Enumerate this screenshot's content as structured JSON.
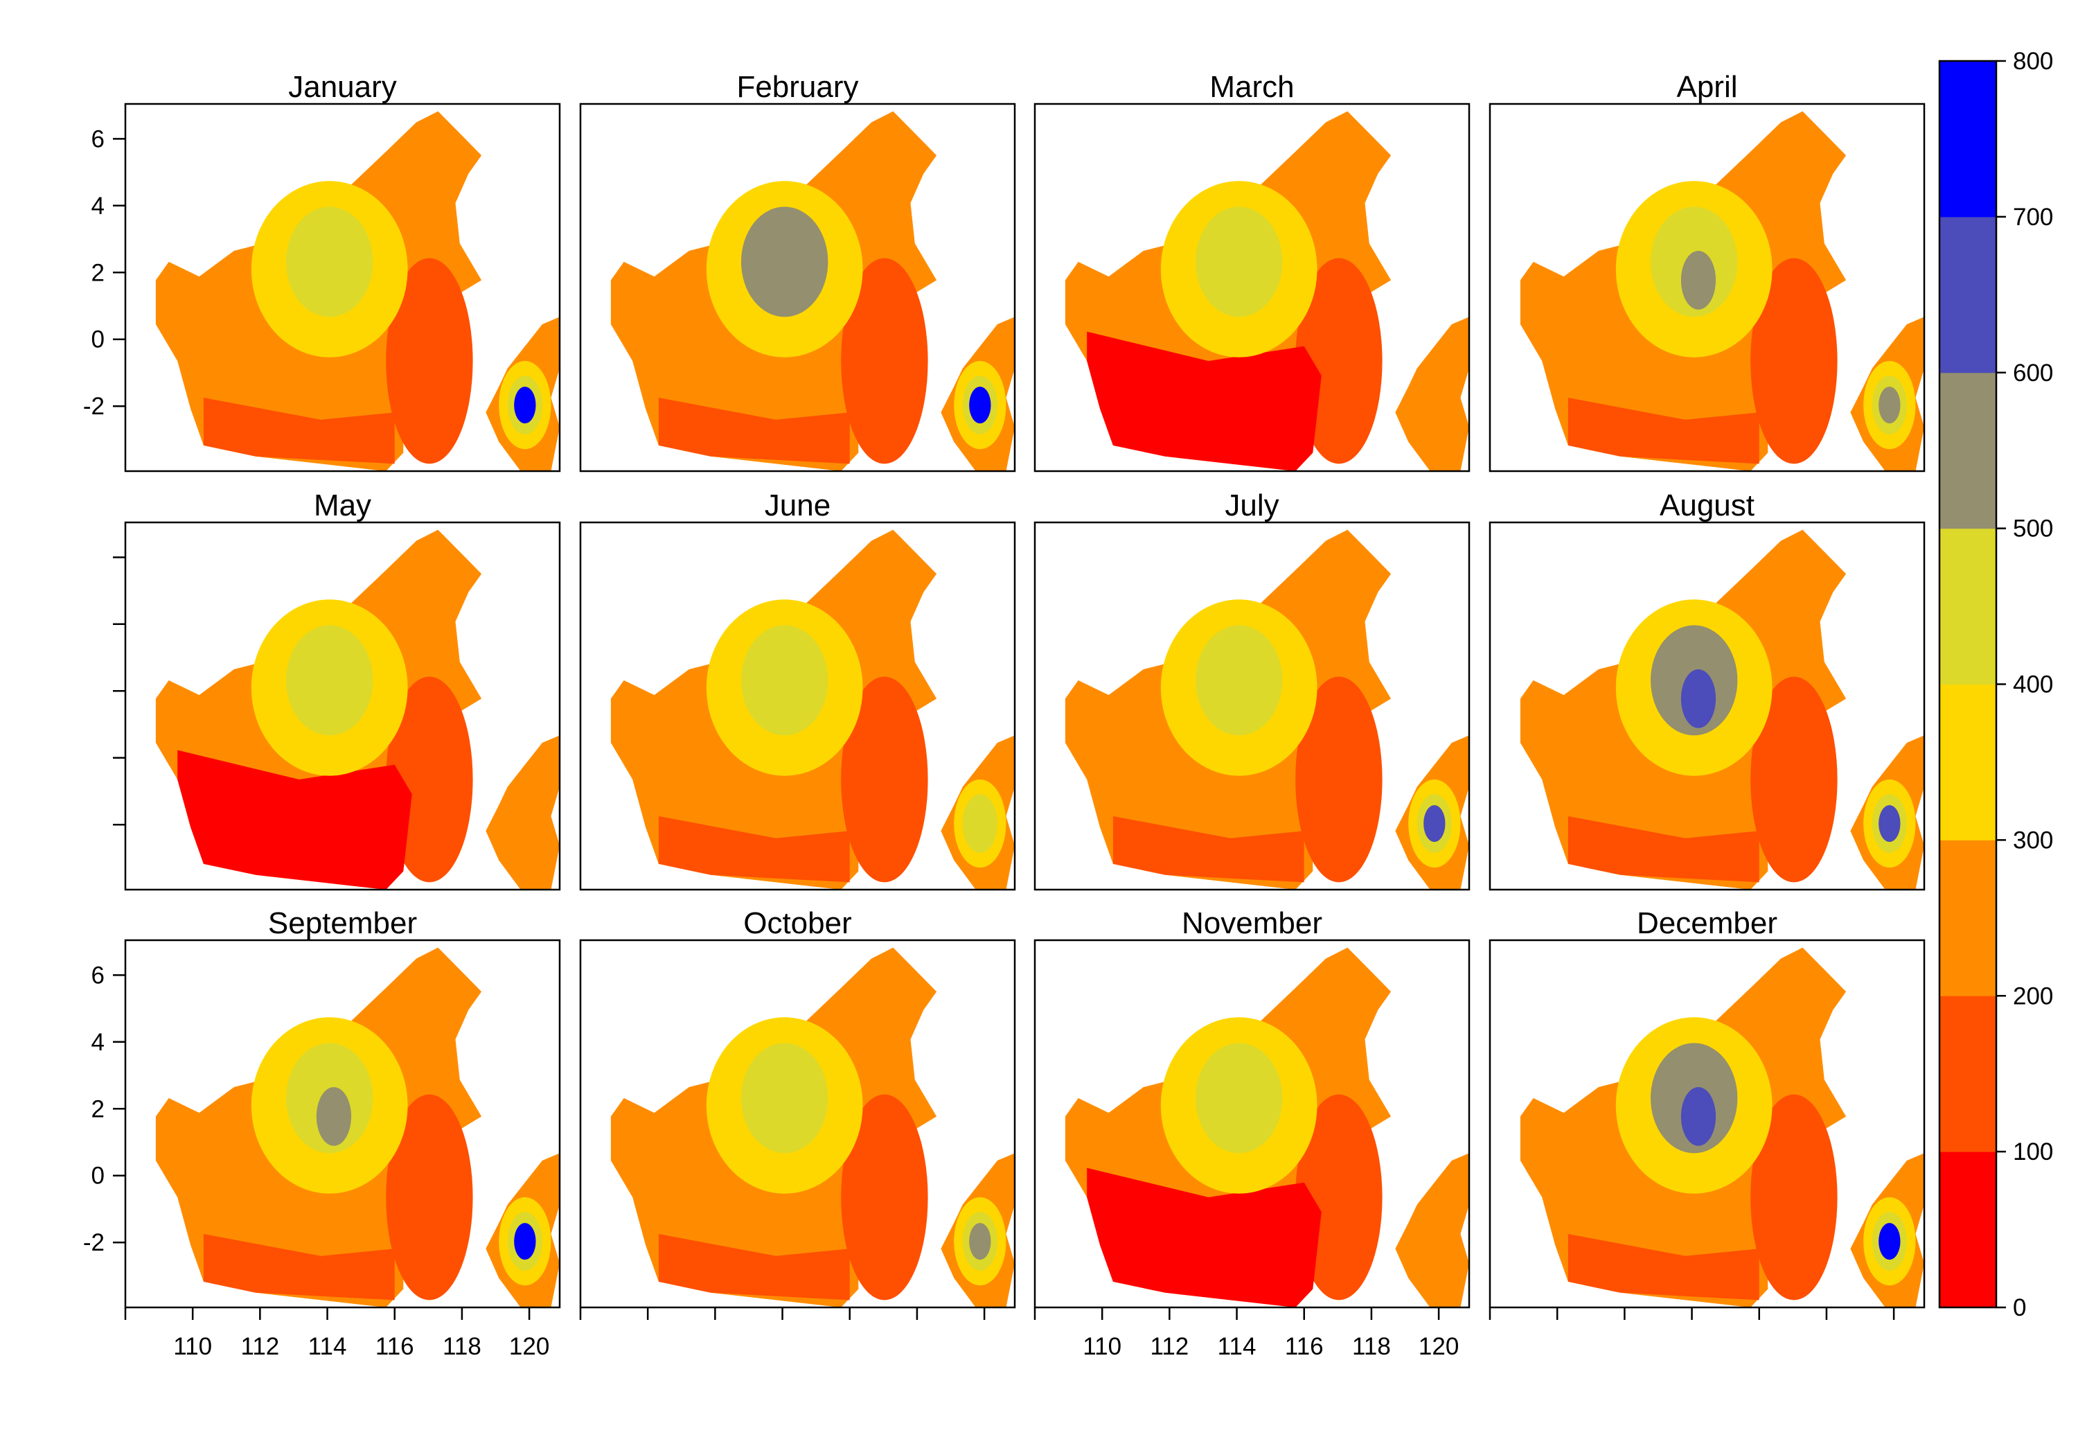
{
  "panels": [
    {
      "title": "January",
      "core": "#dcd92a",
      "peak": null,
      "eastPeak": "#0000ff"
    },
    {
      "title": "February",
      "core": "#948f6e",
      "peak": null,
      "eastPeak": "#0000ff"
    },
    {
      "title": "March",
      "core": "#dcd92a",
      "peak": null,
      "eastPeak": null,
      "south": "#ff0000"
    },
    {
      "title": "April",
      "core": "#dcd92a",
      "peak": "#948f6e",
      "eastPeak": "#948f6e"
    },
    {
      "title": "May",
      "core": "#dcd92a",
      "peak": null,
      "eastPeak": null,
      "south": "#ff0000"
    },
    {
      "title": "June",
      "core": "#dcd92a",
      "peak": null,
      "eastPeak": "#dcd92a"
    },
    {
      "title": "July",
      "core": "#dcd92a",
      "peak": null,
      "eastPeak": "#4c4cba"
    },
    {
      "title": "August",
      "core": "#948f6e",
      "peak": "#4c4cba",
      "eastPeak": "#4c4cba"
    },
    {
      "title": "September",
      "core": "#dcd92a",
      "peak": "#948f6e",
      "eastPeak": "#0000ff"
    },
    {
      "title": "October",
      "core": "#dcd92a",
      "peak": null,
      "eastPeak": "#948f6e"
    },
    {
      "title": "November",
      "core": "#dcd92a",
      "peak": null,
      "eastPeak": null,
      "south": "#ff0000"
    },
    {
      "title": "December",
      "core": "#948f6e",
      "peak": "#4c4cba",
      "eastPeak": "#0000ff"
    }
  ],
  "y_ticks": [
    "6",
    "4",
    "2",
    "0",
    "-2"
  ],
  "x_ticks": [
    "110",
    "112",
    "114",
    "116",
    "118",
    "120"
  ],
  "colorbar": {
    "ticks": [
      "0",
      "100",
      "200",
      "300",
      "400",
      "500",
      "600",
      "700",
      "800"
    ],
    "colors": [
      "#ff0000",
      "#ff4f00",
      "#ff8c00",
      "#ffd700",
      "#dcd92a",
      "#948f6e",
      "#4c4cba",
      "#0000ff"
    ]
  }
}
